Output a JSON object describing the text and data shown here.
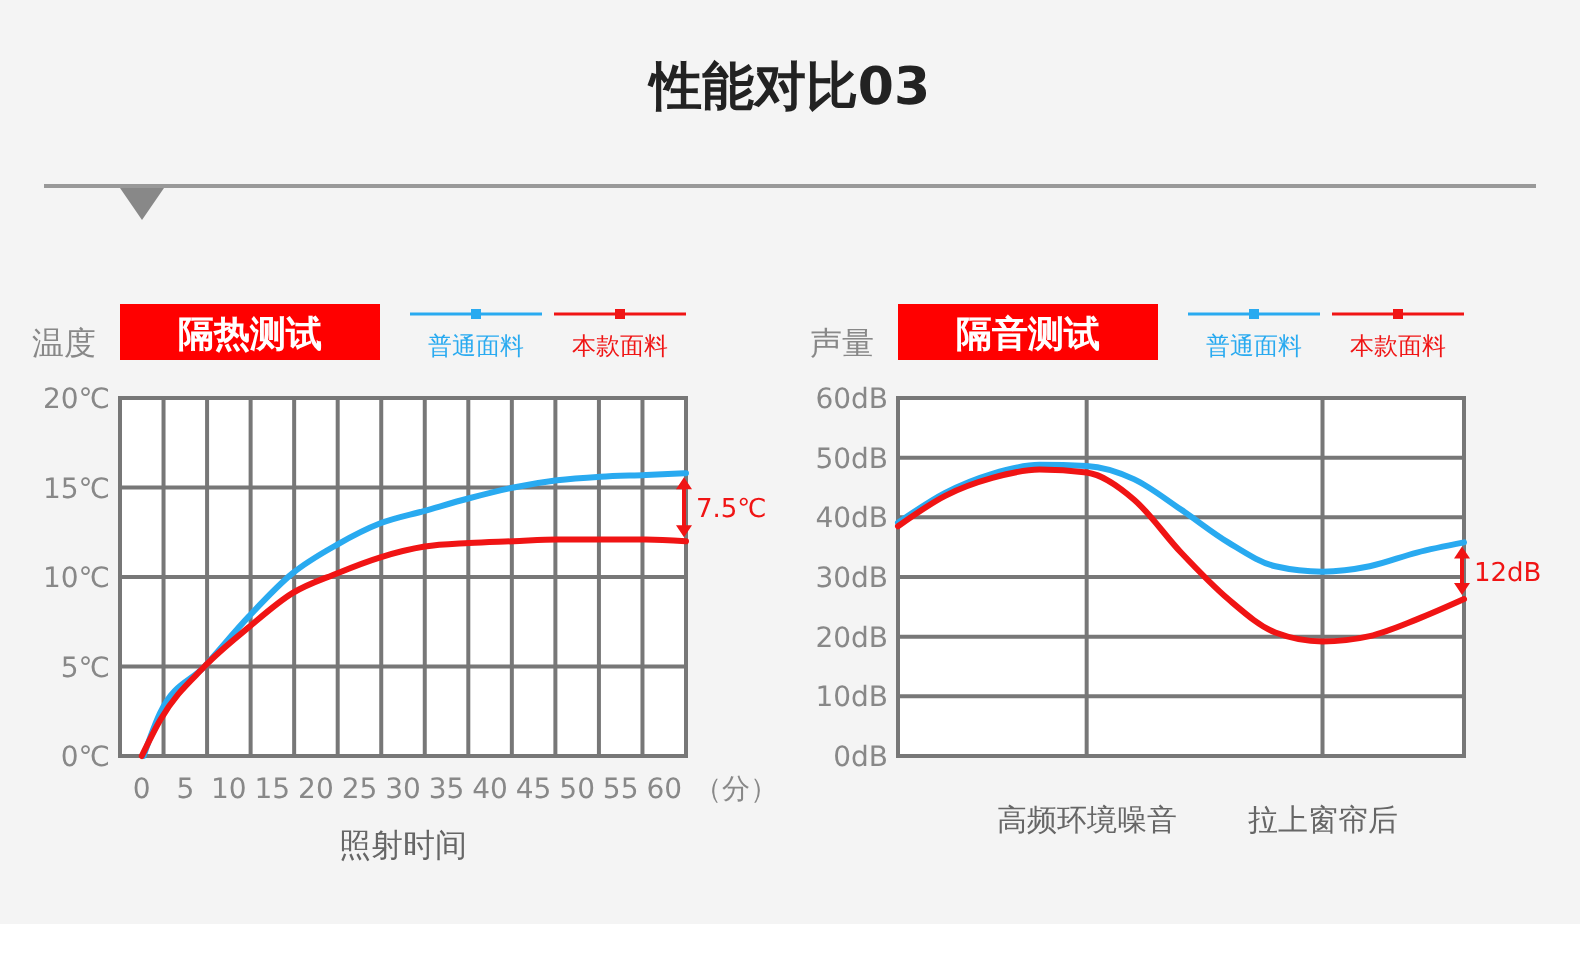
{
  "chart_data": [
    {
      "type": "other",
      "title": "性能对比03"
    },
    {
      "type": "line",
      "title": "隔热测试",
      "ylabel": "温度",
      "xlabel": "照射时间",
      "legend": "top right",
      "grid": true,
      "marker": "none",
      "xlim": [
        -2.5,
        62.5
      ],
      "ylim": [
        0,
        20
      ],
      "xticks": [
        {
          "value": -2.5,
          "label": null
        },
        {
          "value": 2.5,
          "label": null
        },
        {
          "value": 7.5,
          "label": null
        },
        {
          "value": 12.5,
          "label": null
        },
        {
          "value": 17.5,
          "label": null
        },
        {
          "value": 22.5,
          "label": null
        },
        {
          "value": 27.5,
          "label": null
        },
        {
          "value": 32.5,
          "label": null
        },
        {
          "value": 37.5,
          "label": null
        },
        {
          "value": 42.5,
          "label": null
        },
        {
          "value": 47.5,
          "label": null
        },
        {
          "value": 52.5,
          "label": null
        },
        {
          "value": 57.5,
          "label": null
        },
        {
          "value": 62.5,
          "label": null
        },
        0,
        5,
        10,
        15,
        20,
        25,
        30,
        35,
        40,
        45,
        50,
        55,
        60
      ],
      "yticks": [
        {
          "value": 0,
          "label": "0℃"
        },
        {
          "value": 5,
          "label": "5℃"
        },
        {
          "value": 10,
          "label": "10℃"
        },
        {
          "value": 15,
          "label": "15℃"
        },
        {
          "value": 20,
          "label": "20℃"
        }
      ],
      "annotations": [
        "（分）",
        "7.5℃"
      ],
      "series": [
        {
          "name": "普通面料",
          "color": "#29aaf0",
          "x": [
            0.2,
            2.1,
            7.2,
            12.3,
            17.3,
            22.4,
            27.4,
            32.5,
            37.6,
            42.7,
            47.7,
            52.7,
            57.9,
            62.5
          ],
          "values": [
            0,
            2.4,
            5,
            7.8,
            10.2,
            11.8,
            13,
            13.7,
            14.4,
            15,
            15.4,
            15.6,
            15.7,
            15.8
          ]
        },
        {
          "name": "本款面料",
          "color": "#f01414",
          "x": [
            0,
            2.1,
            7.2,
            12.3,
            17.3,
            22.4,
            27.4,
            32.5,
            37.6,
            42.7,
            47.7,
            52.7,
            57.9,
            62.5
          ],
          "values": [
            0,
            2,
            5,
            7.2,
            9.1,
            10.2,
            11.1,
            11.7,
            11.9,
            12,
            12.1,
            12.1,
            12.1,
            12
          ]
        }
      ]
    },
    {
      "type": "line",
      "title": "隔音测试",
      "ylabel": "声量",
      "legend": "top right",
      "grid": true,
      "marker": "none",
      "categories": [
        null,
        null,
        null,
        null,
        "高频环境噪音",
        null,
        null,
        null,
        null,
        "拉上窗帘后",
        null,
        null,
        null
      ],
      "ylim": [
        0,
        60
      ],
      "yticks": [
        {
          "value": 0,
          "label": "0dB"
        },
        {
          "value": 10,
          "label": "10dB"
        },
        {
          "value": 20,
          "label": "20dB"
        },
        {
          "value": 30,
          "label": "30dB"
        },
        {
          "value": 40,
          "label": "40dB"
        },
        {
          "value": 50,
          "label": "50dB"
        },
        {
          "value": 60,
          "label": "60dB"
        }
      ],
      "annotations": [
        "12dB"
      ],
      "series": [
        {
          "name": "普通面料",
          "color": "#29aaf0",
          "values": [
            39.1,
            44.1,
            47.3,
            48.8,
            48.6,
            46.4,
            41.3,
            35.8,
            31.8,
            30.9,
            31.8,
            34.1,
            35.8
          ]
        },
        {
          "name": "本款面料",
          "color": "#f01414",
          "values": [
            38.5,
            43.6,
            46.6,
            48,
            47.5,
            43,
            34.1,
            26.3,
            20.7,
            19.2,
            20.1,
            22.9,
            26.3
          ]
        }
      ]
    }
  ]
}
